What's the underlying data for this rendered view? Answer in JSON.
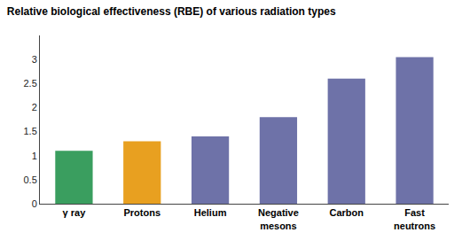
{
  "chart_data": {
    "type": "bar",
    "title": "Relative biological effectiveness (RBE) of various radiation types",
    "categories": [
      "γ ray",
      "Protons",
      "Helium",
      "Negative\nmesons",
      "Carbon",
      "Fast\nneutrons"
    ],
    "values": [
      1.1,
      1.3,
      1.4,
      1.8,
      2.6,
      3.05
    ],
    "colors": [
      "#3a9e5f",
      "#e8a020",
      "#6e72a8",
      "#6e72a8",
      "#6e72a8",
      "#6e72a8"
    ],
    "ylim": [
      0,
      3.5
    ],
    "yticks": [
      0,
      0.5,
      1,
      1.5,
      2,
      2.5,
      3
    ],
    "grid": false
  }
}
